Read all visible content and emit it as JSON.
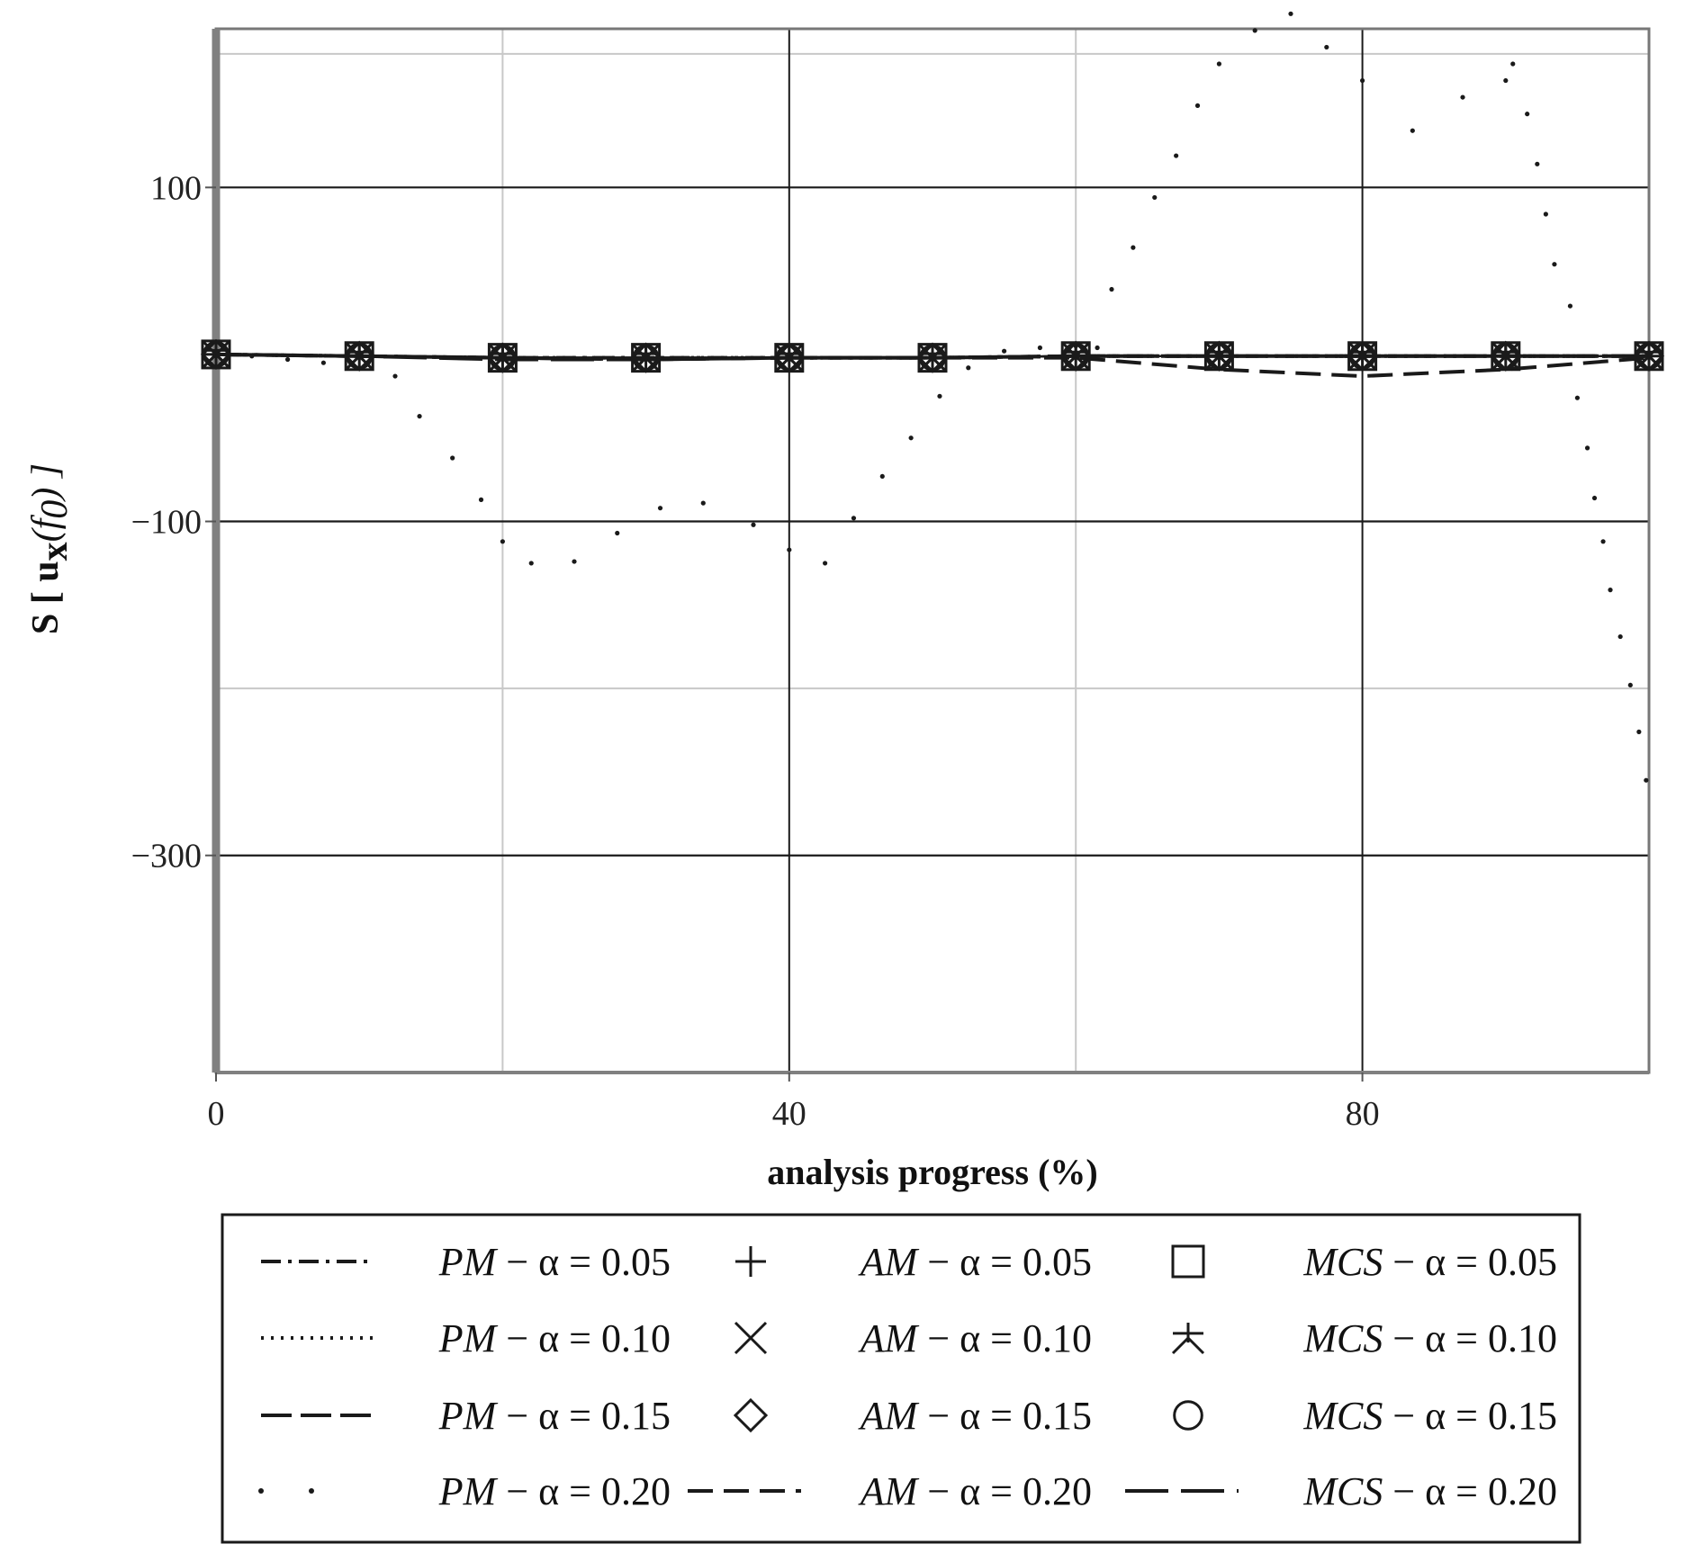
{
  "chart_data": {
    "type": "line",
    "title": "",
    "xlabel": "analysis progress (%)",
    "ylabel": {
      "prefix": "S",
      "var": "u",
      "sub": "x",
      "arg": "f",
      "arg_sub": "0"
    },
    "xlim": [
      0,
      100
    ],
    "ylim": [
      -430,
      195
    ],
    "xticks": [
      0,
      40,
      80
    ],
    "yticks": [
      100,
      -100,
      -300
    ],
    "grid": true,
    "legend_position": "bottom",
    "series": [
      {
        "name": "PM − α = 0.05",
        "style": "dashdot",
        "x": [
          0,
          10,
          20,
          30,
          40,
          50,
          60,
          70,
          80,
          90,
          100
        ],
        "y": [
          0,
          -1,
          -2,
          -2,
          -2,
          -2,
          -1,
          -1,
          -1,
          -1,
          -1
        ]
      },
      {
        "name": "PM − α = 0.10",
        "style": "dotted",
        "x": [
          0,
          10,
          20,
          30,
          40,
          50,
          60,
          70,
          80,
          90,
          100
        ],
        "y": [
          0,
          -1,
          -2,
          -2,
          -2,
          -2,
          -1,
          -1,
          -1,
          -1,
          -1
        ]
      },
      {
        "name": "PM − α = 0.15",
        "style": "longdash",
        "x": [
          0,
          10,
          20,
          30,
          40,
          50,
          60,
          70,
          80,
          90,
          100
        ],
        "y": [
          0,
          -1,
          -2,
          -3,
          -2,
          -2,
          -1,
          -1,
          -1,
          -1,
          -1
        ]
      },
      {
        "name": "PM − α = 0.20",
        "style": "sparse-dots",
        "x": [
          0,
          2.5,
          5,
          7.5,
          10,
          12.5,
          14.2,
          16.5,
          18.5,
          20,
          22,
          25,
          28,
          31,
          34,
          37.5,
          40,
          42.5,
          44.5,
          46.5,
          48.5,
          50.5,
          52.5,
          55,
          57.5,
          60,
          61.5,
          62.5,
          64,
          65.5,
          67,
          68.5,
          70,
          72.5,
          75,
          77.5,
          80,
          83.5,
          87,
          90,
          90.5,
          91.5,
          92.2,
          92.8,
          93.4,
          94.5,
          95,
          95.7,
          96.2,
          96.8,
          97.3,
          98,
          98.7,
          99.3,
          99.8
        ],
        "y": [
          0,
          -1,
          -3,
          -5,
          -8,
          -13,
          -37,
          -62,
          -87,
          -112,
          -125,
          -124,
          -107,
          -92,
          -89,
          -102,
          -117,
          -125,
          -98,
          -73,
          -50,
          -25,
          -8,
          2,
          4,
          5,
          4,
          39,
          64,
          94,
          119,
          149,
          174,
          194,
          204,
          184,
          164,
          134,
          154,
          164,
          174,
          144,
          114,
          84,
          54,
          29,
          -26,
          -56,
          -86,
          -112,
          -141,
          -169,
          -198,
          -226,
          -255
        ]
      },
      {
        "name": "AM − α = 0.05",
        "marker": "plus",
        "x": [
          0,
          10,
          20,
          30,
          40,
          50,
          60,
          70,
          80,
          90,
          100
        ],
        "y": [
          0,
          -1,
          -2,
          -2,
          -2,
          -2,
          -1,
          -1,
          -1,
          -1,
          -1
        ]
      },
      {
        "name": "AM − α = 0.10",
        "marker": "cross",
        "x": [
          0,
          10,
          20,
          30,
          40,
          50,
          60,
          70,
          80,
          90,
          100
        ],
        "y": [
          0,
          -1,
          -2,
          -2,
          -2,
          -2,
          -1,
          -1,
          -1,
          -1,
          -1
        ]
      },
      {
        "name": "AM − α = 0.15",
        "marker": "diamond",
        "x": [
          0,
          10,
          20,
          30,
          40,
          50,
          60,
          70,
          80,
          90,
          100
        ],
        "y": [
          0,
          -1,
          -2,
          -2,
          -2,
          -2,
          -1,
          -1,
          -1,
          -1,
          -1
        ]
      },
      {
        "name": "AM − α = 0.20",
        "style": "dashed",
        "x": [
          0,
          10,
          20,
          30,
          40,
          50,
          60,
          70,
          80,
          90,
          100
        ],
        "y": [
          0,
          -1,
          -2,
          -3,
          -2,
          -2,
          -2,
          -9,
          -13,
          -9,
          -2
        ]
      },
      {
        "name": "MCS − α = 0.05",
        "marker": "square",
        "x": [
          0,
          10,
          20,
          30,
          40,
          50,
          60,
          70,
          80,
          90,
          100
        ],
        "y": [
          0,
          -1,
          -2,
          -2,
          -2,
          -2,
          -1,
          -1,
          -1,
          -1,
          -1
        ]
      },
      {
        "name": "MCS − α = 0.10",
        "marker": "star",
        "x": [
          0,
          10,
          20,
          30,
          40,
          50,
          60,
          70,
          80,
          90,
          100
        ],
        "y": [
          0,
          -1,
          -2,
          -2,
          -2,
          -2,
          -1,
          -1,
          -1,
          -1,
          -1
        ]
      },
      {
        "name": "MCS − α = 0.15",
        "marker": "circle",
        "x": [
          0,
          10,
          20,
          30,
          40,
          50,
          60,
          70,
          80,
          90,
          100
        ],
        "y": [
          0,
          -1,
          -2,
          -2,
          -2,
          -2,
          -1,
          -1,
          -1,
          -1,
          -1
        ]
      },
      {
        "name": "MCS − α = 0.20",
        "style": "longdashed",
        "x": [
          0,
          10,
          20,
          30,
          40,
          50,
          60,
          70,
          80,
          90,
          100
        ],
        "y": [
          0,
          -1,
          -3,
          -3,
          -2,
          -2,
          -1,
          -1,
          -1,
          -1,
          -1
        ]
      }
    ]
  },
  "colors": {
    "line": "#1a1a1a",
    "grid_major": "#1a1a1a",
    "grid_minor": "#c8c8c8",
    "frame": "#777777"
  }
}
